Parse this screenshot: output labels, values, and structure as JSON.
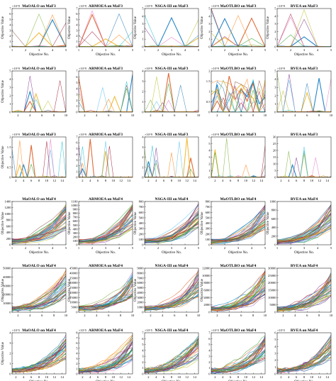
{
  "figure": {
    "ylabel": "Objective Value",
    "xlabel": "Objective No."
  },
  "chart_data": [
    {
      "type": "line",
      "title": "MaOALO on MaF3",
      "xlabel": "Objective No.",
      "ylabel": "Objective Value",
      "xlim": [
        1,
        5
      ],
      "xticks": [
        "1",
        "2",
        "3",
        "4",
        "5"
      ],
      "ylim": [
        0,
        7
      ],
      "yticks": [
        "0",
        "1",
        "2",
        "3",
        "4",
        "5",
        "6",
        "7"
      ],
      "exponent": "×10^9",
      "series_hint": "spikes at objective 4"
    },
    {
      "type": "line",
      "title": "ARMOEA on MaF3",
      "xlabel": "Objective No.",
      "ylabel": "Objective Value",
      "xlim": [
        1,
        5
      ],
      "xticks": [
        "1",
        "2",
        "3",
        "4",
        "5"
      ],
      "ylim": [
        0,
        7
      ],
      "yticks": [
        "0",
        "1",
        "2",
        "3",
        "4",
        "5",
        "6",
        "7"
      ],
      "exponent": "×10^9"
    },
    {
      "type": "line",
      "title": "NSGA-III on MaF3",
      "xlabel": "Objective No.",
      "ylabel": "Objective Value",
      "xlim": [
        1,
        5
      ],
      "xticks": [
        "1",
        "2",
        "3",
        "4",
        "5"
      ],
      "ylim": [
        0,
        5
      ],
      "yticks": [
        "0",
        "1",
        "2",
        "3",
        "4",
        "5"
      ],
      "exponent": "×10^9"
    },
    {
      "type": "line",
      "title": "MaOTLBO on MaF3",
      "xlabel": "Objective No.",
      "ylabel": "Objective Value",
      "xlim": [
        1,
        5
      ],
      "xticks": [
        "1",
        "2",
        "3",
        "4",
        "5"
      ],
      "ylim": [
        0,
        5
      ],
      "yticks": [
        "0",
        "1",
        "2",
        "3",
        "4",
        "5"
      ],
      "exponent": "×10^9"
    },
    {
      "type": "line",
      "title": "RVEA on MaF3",
      "xlabel": "Objective No.",
      "ylabel": "Objective Value",
      "xlim": [
        1,
        5
      ],
      "xticks": [
        "1",
        "2",
        "3",
        "4",
        "5"
      ],
      "ylim": [
        0,
        5
      ],
      "yticks": [
        "0",
        "1",
        "2",
        "3",
        "4",
        "5"
      ],
      "exponent": "×10^9"
    },
    {
      "type": "line",
      "title": "MaOALO on MaF3",
      "xlabel": "",
      "ylabel": "Objective Value",
      "xlim": [
        1,
        10
      ],
      "xticks": [
        "2",
        "4",
        "6",
        "8",
        "10"
      ],
      "ylim": [
        0,
        5
      ],
      "yticks": [
        "0",
        "1",
        "2",
        "3",
        "4",
        "5"
      ],
      "exponent": "×10^9"
    },
    {
      "type": "line",
      "title": "ARMOEA on MaF3",
      "xlabel": "",
      "ylabel": "",
      "xlim": [
        1,
        10
      ],
      "xticks": [
        "2",
        "4",
        "6",
        "8",
        "10"
      ],
      "ylim": [
        0,
        7
      ],
      "yticks": [
        "0",
        "1",
        "2",
        "3",
        "4",
        "5",
        "6",
        "7"
      ],
      "exponent": "×10^9"
    },
    {
      "type": "line",
      "title": "NSGA-III on MaF3",
      "xlabel": "",
      "ylabel": "",
      "xlim": [
        1,
        10
      ],
      "xticks": [
        "2",
        "4",
        "6",
        "8",
        "10"
      ],
      "ylim": [
        0,
        4
      ],
      "yticks": [
        "0",
        "1",
        "2",
        "3",
        "4"
      ],
      "exponent": "×10^9"
    },
    {
      "type": "line",
      "title": "MaOTLBO on MaF3",
      "xlabel": "",
      "ylabel": "",
      "xlim": [
        1,
        10
      ],
      "xticks": [
        "2",
        "4",
        "6",
        "8",
        "10"
      ],
      "ylim": [
        0,
        2
      ],
      "yticks": [
        "0",
        "0.5",
        "1",
        "1.5",
        "2"
      ],
      "exponent": "×10^9"
    },
    {
      "type": "line",
      "title": "RVEA on MaF3",
      "xlabel": "",
      "ylabel": "",
      "xlim": [
        1,
        10
      ],
      "xticks": [
        "2",
        "4",
        "6",
        "8",
        "10"
      ],
      "ylim": [
        0,
        5
      ],
      "yticks": [
        "0",
        "1",
        "2",
        "3",
        "4",
        "5"
      ],
      "exponent": "×10^9"
    },
    {
      "type": "line",
      "title": "MaOALO on MaF3",
      "xlabel": "",
      "ylabel": "Objective Value",
      "xlim": [
        1,
        15
      ],
      "xticks": [
        "2",
        "4",
        "6",
        "8",
        "10",
        "12",
        "14"
      ],
      "ylim": [
        0,
        2
      ],
      "yticks": [
        "0",
        "0.5",
        "1",
        "1.5",
        "2"
      ],
      "exponent": "×10^9"
    },
    {
      "type": "line",
      "title": "ARMOEA on MaF3",
      "xlabel": "",
      "ylabel": "",
      "xlim": [
        1,
        15
      ],
      "xticks": [
        "2",
        "4",
        "6",
        "8",
        "10",
        "12",
        "14"
      ],
      "ylim": [
        0,
        7
      ],
      "yticks": [
        "0",
        "1",
        "2",
        "3",
        "4",
        "5",
        "6",
        "7"
      ],
      "exponent": "×10^9"
    },
    {
      "type": "line",
      "title": "NSGA-III on MaF3",
      "xlabel": "",
      "ylabel": "",
      "xlim": [
        1,
        15
      ],
      "xticks": [
        "2",
        "4",
        "6",
        "8",
        "10",
        "12",
        "14"
      ],
      "ylim": [
        0,
        4
      ],
      "yticks": [
        "0",
        "1",
        "2",
        "3",
        "4"
      ],
      "exponent": "×10^9"
    },
    {
      "type": "line",
      "title": "MaOTLBO on MaF3",
      "xlabel": "",
      "ylabel": "",
      "xlim": [
        1,
        15
      ],
      "xticks": [
        "2",
        "4",
        "6",
        "8",
        "10",
        "12",
        "14"
      ],
      "ylim": [
        0,
        6
      ],
      "yticks": [
        "0",
        "1",
        "2",
        "3",
        "4",
        "5",
        "6"
      ],
      "exponent": "×10^9"
    },
    {
      "type": "line",
      "title": "RVEA on MaF3",
      "xlabel": "",
      "ylabel": "",
      "xlim": [
        1,
        15
      ],
      "xticks": [
        "2",
        "4",
        "6",
        "8",
        "10",
        "12",
        "14"
      ],
      "ylim": [
        0,
        30
      ],
      "yticks": [
        "0",
        "5",
        "10",
        "15",
        "20",
        "25",
        "30"
      ],
      "exponent": ""
    },
    {
      "type": "line",
      "title": "MaOALO on MaF4",
      "xlabel": "Objective No.",
      "ylabel": "Objective Value",
      "xlim": [
        1,
        5
      ],
      "xticks": [
        "1",
        "2",
        "3",
        "4",
        "5"
      ],
      "ylim": [
        0,
        1400
      ],
      "yticks": [
        "0",
        "200",
        "400",
        "600",
        "800",
        "1000",
        "1200",
        "1400"
      ],
      "exponent": ""
    },
    {
      "type": "line",
      "title": "ARMOEA on MaF4",
      "xlabel": "Objective No.",
      "ylabel": "Objective Value",
      "xlim": [
        1,
        5
      ],
      "xticks": [
        "1",
        "2",
        "3",
        "4",
        "5"
      ],
      "ylim": [
        0,
        1100
      ],
      "yticks": [
        "0",
        "100",
        "200",
        "300",
        "400",
        "500",
        "600",
        "700",
        "800",
        "900",
        "1000",
        "1100"
      ],
      "exponent": ""
    },
    {
      "type": "line",
      "title": "NSGA-III on MaF4",
      "xlabel": "Objective No.",
      "ylabel": "Objective Value",
      "xlim": [
        1,
        5
      ],
      "xticks": [
        "1",
        "2",
        "3",
        "4",
        "5"
      ],
      "ylim": [
        0,
        800
      ],
      "yticks": [
        "0",
        "100",
        "200",
        "300",
        "400",
        "500",
        "600",
        "700",
        "800"
      ],
      "exponent": ""
    },
    {
      "type": "line",
      "title": "MaOTLBO on MaF4",
      "xlabel": "Objective No.",
      "ylabel": "Objective Value",
      "xlim": [
        1,
        5
      ],
      "xticks": [
        "1",
        "2",
        "3",
        "4",
        "5"
      ],
      "ylim": [
        0,
        800
      ],
      "yticks": [
        "0",
        "100",
        "200",
        "300",
        "400",
        "500",
        "600",
        "700",
        "800"
      ],
      "exponent": ""
    },
    {
      "type": "line",
      "title": "RVEA on MaF4",
      "xlabel": "Objective No.",
      "ylabel": "Objective Value",
      "xlim": [
        1,
        5
      ],
      "xticks": [
        "1",
        "2",
        "3",
        "4",
        "5"
      ],
      "ylim": [
        0,
        1000
      ],
      "yticks": [
        "0",
        "200",
        "400",
        "600",
        "800",
        "1000"
      ],
      "exponent": ""
    },
    {
      "type": "line",
      "title": "MaOALO on MaF4",
      "xlabel": "",
      "ylabel": "Objective Value",
      "xlim": [
        1,
        10
      ],
      "xticks": [
        "2",
        "4",
        "6",
        "8",
        "10"
      ],
      "ylim": [
        0,
        50000
      ],
      "yticks": [
        "0",
        "10000",
        "20000",
        "30000",
        "40000",
        "50000"
      ],
      "exponent": ""
    },
    {
      "type": "line",
      "title": "ARMOEA on MaF4",
      "xlabel": "",
      "ylabel": "Objective Value",
      "xlim": [
        1,
        10
      ],
      "xticks": [
        "2",
        "4",
        "6",
        "8",
        "10"
      ],
      "ylim": [
        0,
        45000
      ],
      "yticks": [
        "0",
        "5000",
        "10000",
        "15000",
        "20000",
        "25000",
        "30000",
        "35000",
        "40000",
        "45000"
      ],
      "exponent": ""
    },
    {
      "type": "line",
      "title": "NSGA-III on MaF4",
      "xlabel": "",
      "ylabel": "Objective Value",
      "xlim": [
        1,
        10
      ],
      "xticks": [
        "2",
        "4",
        "6",
        "8",
        "10"
      ],
      "ylim": [
        0,
        9000
      ],
      "yticks": [
        "0",
        "1000",
        "2000",
        "3000",
        "4000",
        "5000",
        "6000",
        "7000",
        "8000",
        "9000"
      ],
      "exponent": ""
    },
    {
      "type": "line",
      "title": "MaOTLBO on MaF4",
      "xlabel": "",
      "ylabel": "Objective Value",
      "xlim": [
        1,
        10
      ],
      "xticks": [
        "2",
        "4",
        "6",
        "8",
        "10"
      ],
      "ylim": [
        0,
        12000
      ],
      "yticks": [
        "0",
        "2000",
        "4000",
        "6000",
        "8000",
        "10000",
        "12000"
      ],
      "exponent": ""
    },
    {
      "type": "line",
      "title": "RVEA on MaF4",
      "xlabel": "",
      "ylabel": "",
      "xlim": [
        1,
        10
      ],
      "xticks": [
        "2",
        "4",
        "6",
        "8",
        "10"
      ],
      "ylim": [
        0,
        30000
      ],
      "yticks": [
        "0",
        "5000",
        "10000",
        "15000",
        "20000",
        "25000",
        "30000"
      ],
      "exponent": ""
    },
    {
      "type": "line",
      "title": "MaOALO on MaF4",
      "xlabel": "Objective No.",
      "ylabel": "Objective Value",
      "xlim": [
        1,
        15
      ],
      "xticks": [
        "2",
        "4",
        "6",
        "8",
        "10",
        "12",
        "14"
      ],
      "ylim": [
        0,
        4
      ],
      "yticks": [
        "0",
        "1",
        "2",
        "3",
        "4"
      ],
      "exponent": "×10^5"
    },
    {
      "type": "line",
      "title": "ARMOEA on MaF4",
      "xlabel": "Objective No.",
      "ylabel": "",
      "xlim": [
        1,
        15
      ],
      "xticks": [
        "2",
        "4",
        "6",
        "8",
        "10",
        "12",
        "14"
      ],
      "ylim": [
        0,
        8
      ],
      "yticks": [
        "0",
        "1",
        "2",
        "3",
        "4",
        "5",
        "6",
        "7",
        "8"
      ],
      "exponent": "×10^5"
    },
    {
      "type": "line",
      "title": "NSGA-III on MaF4",
      "xlabel": "Objective No.",
      "ylabel": "",
      "xlim": [
        1,
        15
      ],
      "xticks": [
        "2",
        "4",
        "6",
        "8",
        "10",
        "12",
        "14"
      ],
      "ylim": [
        0,
        7
      ],
      "yticks": [
        "0",
        "1",
        "2",
        "3",
        "4",
        "5",
        "6",
        "7"
      ],
      "exponent": "×10^5"
    },
    {
      "type": "line",
      "title": "MaOTLBO on MaF4",
      "xlabel": "Objective No.",
      "ylabel": "",
      "xlim": [
        1,
        15
      ],
      "xticks": [
        "2",
        "4",
        "6",
        "8",
        "10",
        "12",
        "14"
      ],
      "ylim": [
        0,
        7
      ],
      "yticks": [
        "0",
        "1",
        "2",
        "3",
        "4",
        "5",
        "6",
        "7"
      ],
      "exponent": "×10^5"
    },
    {
      "type": "line",
      "title": "RVEA on MaF4",
      "xlabel": "Objective No.",
      "ylabel": "",
      "xlim": [
        1,
        15
      ],
      "xticks": [
        "2",
        "4",
        "6",
        "8",
        "10",
        "12",
        "14"
      ],
      "ylim": [
        0,
        6
      ],
      "yticks": [
        "0",
        "1",
        "2",
        "3",
        "4",
        "5",
        "6"
      ],
      "exponent": "×10^5"
    }
  ],
  "palette": [
    "#0072bd",
    "#d95319",
    "#edb120",
    "#7e2f8e",
    "#77ac30",
    "#4dbeee",
    "#a2142f",
    "#1f77b4",
    "#2ca02c",
    "#8c564b",
    "#e377c2",
    "#17becf",
    "#bcbd22",
    "#ff7f0e",
    "#9467bd"
  ]
}
